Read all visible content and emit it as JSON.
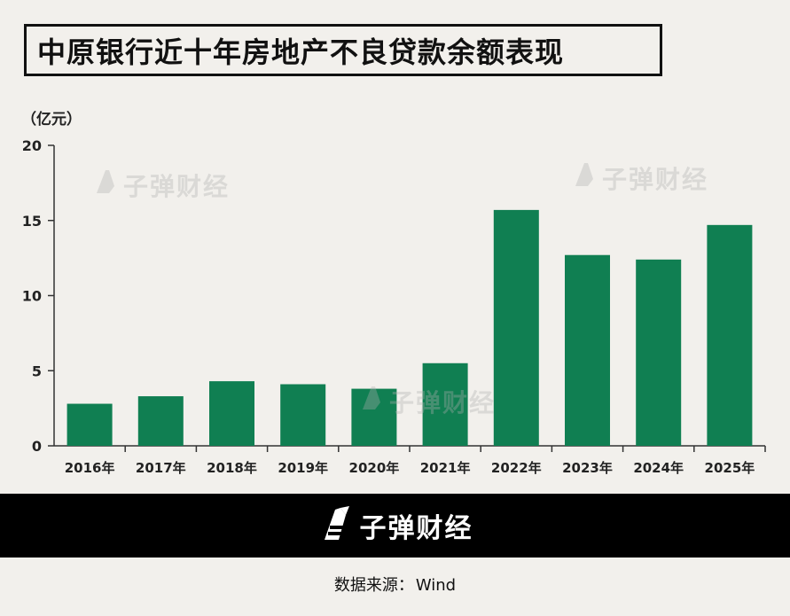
{
  "title": "中原银行近十年房地产不良贷款余额表现",
  "unit_label": "（亿元）",
  "watermark_text": "子弹财经",
  "footer": {
    "brand": "子弹财经",
    "source_prefix": "数据来源：",
    "source_value": "Wind"
  },
  "colors": {
    "bar": "#107f52",
    "background": "#f2f0ec",
    "footer_band": "#000000",
    "axis": "#333333"
  },
  "chart_data": {
    "type": "bar",
    "title": "中原银行近十年房地产不良贷款余额表现",
    "ylabel": "（亿元）",
    "xlabel": "",
    "categories": [
      "2016年",
      "2017年",
      "2018年",
      "2019年",
      "2020年",
      "2021年",
      "2022年",
      "2023年",
      "2024年",
      "2025年"
    ],
    "values": [
      2.8,
      3.3,
      4.3,
      4.1,
      3.8,
      5.5,
      15.7,
      12.7,
      12.4,
      14.7
    ],
    "ylim": [
      0,
      20
    ],
    "yticks": [
      0,
      5,
      10,
      15,
      20
    ],
    "grid": false,
    "legend": "none"
  }
}
